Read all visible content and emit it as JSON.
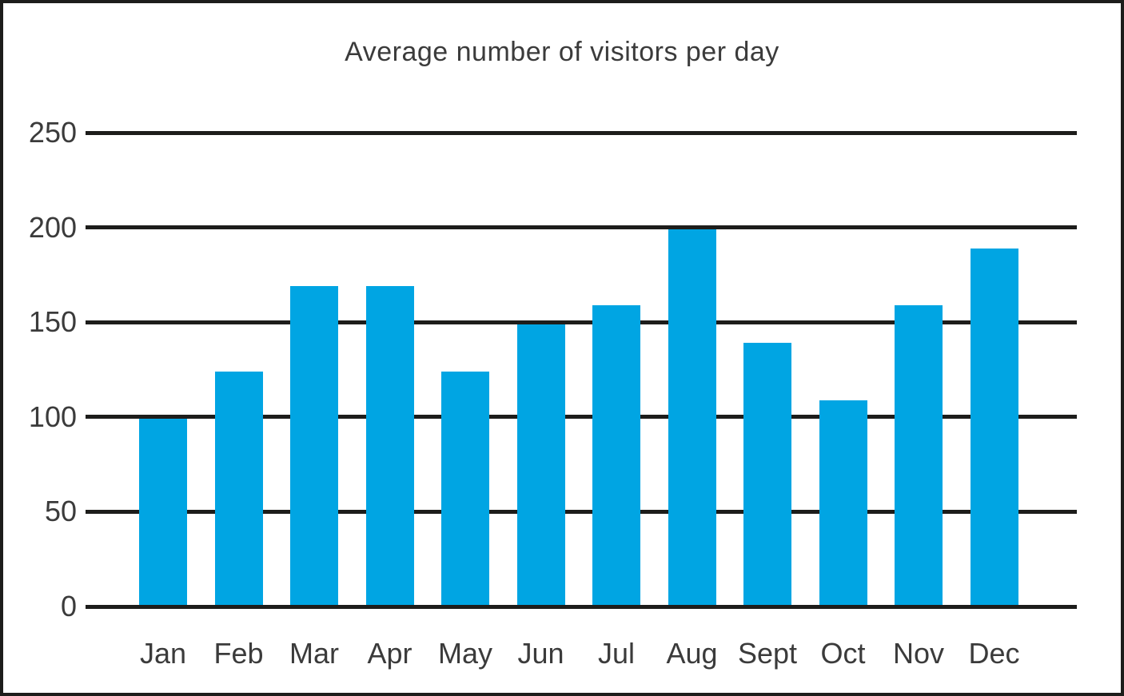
{
  "chart_data": {
    "type": "bar",
    "title": "Average number of visitors per day",
    "categories": [
      "Jan",
      "Feb",
      "Mar",
      "Apr",
      "May",
      "Jun",
      "Jul",
      "Aug",
      "Sept",
      "Oct",
      "Nov",
      "Dec"
    ],
    "values": [
      100,
      125,
      170,
      170,
      125,
      150,
      160,
      200,
      140,
      110,
      160,
      190
    ],
    "xlabel": "",
    "ylabel": "",
    "ylim": [
      0,
      250
    ],
    "yticks": [
      0,
      50,
      100,
      150,
      200,
      250
    ],
    "grid": "horizontal-only",
    "legend_position": "none",
    "colors": {
      "bar": "#00a5e3",
      "gridline": "#1d1d1b",
      "text": "#3b3b3b",
      "frame_border": "#1d1d1b",
      "background": "#ffffff"
    }
  }
}
